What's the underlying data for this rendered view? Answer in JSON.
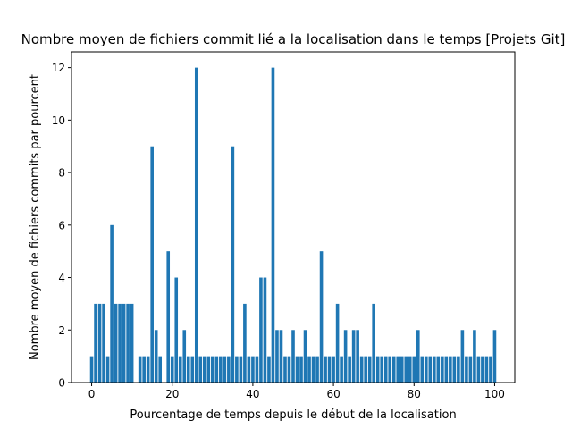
{
  "chart_data": {
    "type": "bar",
    "title": "Nombre moyen de fichiers commit lié a la localisation dans le temps [Projets Git]",
    "xlabel": "Pourcentage de temps depuis le début de la localisation",
    "ylabel": "Nombre moyen de fichiers commits par pourcent",
    "xlim": [
      -5,
      105
    ],
    "ylim": [
      0,
      12.6
    ],
    "xticks": [
      0,
      20,
      40,
      60,
      80,
      100
    ],
    "yticks": [
      0,
      2,
      4,
      6,
      8,
      10,
      12
    ],
    "bar_color": "#1f77b4",
    "grid": false,
    "x": [
      0,
      1,
      2,
      3,
      4,
      5,
      6,
      7,
      8,
      9,
      10,
      11,
      12,
      13,
      14,
      15,
      16,
      17,
      18,
      19,
      20,
      21,
      22,
      23,
      24,
      25,
      26,
      27,
      28,
      29,
      30,
      31,
      32,
      33,
      34,
      35,
      36,
      37,
      38,
      39,
      40,
      41,
      42,
      43,
      44,
      45,
      46,
      47,
      48,
      49,
      50,
      51,
      52,
      53,
      54,
      55,
      56,
      57,
      58,
      59,
      60,
      61,
      62,
      63,
      64,
      65,
      66,
      67,
      68,
      69,
      70,
      71,
      72,
      73,
      74,
      75,
      76,
      77,
      78,
      79,
      80,
      81,
      82,
      83,
      84,
      85,
      86,
      87,
      88,
      89,
      90,
      91,
      92,
      93,
      94,
      95,
      96,
      97,
      98,
      99,
      100
    ],
    "values": [
      1,
      3,
      3,
      3,
      1,
      6,
      3,
      3,
      3,
      3,
      3,
      0,
      1,
      1,
      1,
      9,
      2,
      1,
      0,
      5,
      1,
      4,
      1,
      2,
      1,
      1,
      12,
      1,
      1,
      1,
      1,
      1,
      1,
      1,
      1,
      9,
      1,
      1,
      3,
      1,
      1,
      1,
      4,
      4,
      1,
      12,
      2,
      2,
      1,
      1,
      2,
      1,
      1,
      2,
      1,
      1,
      1,
      5,
      1,
      1,
      1,
      3,
      1,
      2,
      1,
      2,
      2,
      1,
      1,
      1,
      3,
      1,
      1,
      1,
      1,
      1,
      1,
      1,
      1,
      1,
      1,
      2,
      1,
      1,
      1,
      1,
      1,
      1,
      1,
      1,
      1,
      1,
      2,
      1,
      1,
      2,
      1,
      1,
      1,
      1,
      2
    ]
  }
}
